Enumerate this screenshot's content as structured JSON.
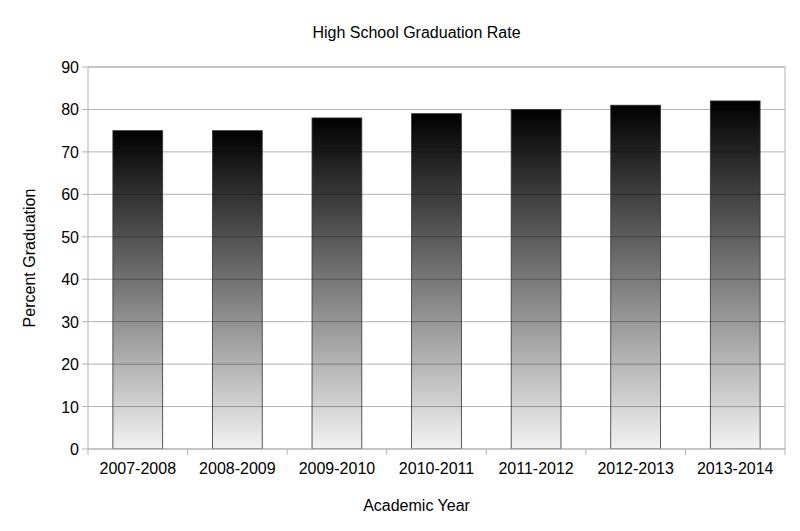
{
  "chart_data": {
    "type": "bar",
    "title": "High School Graduation Rate",
    "x_label": "Academic Year",
    "y_label": "Percent Graduation",
    "categories": [
      "2007-2008",
      "2008-2009",
      "2009-2010",
      "2010-2011",
      "2011-2012",
      "2012-2013",
      "2013-2014"
    ],
    "values": [
      75,
      75,
      78,
      79,
      80,
      81,
      82
    ],
    "color": "#000000",
    "ylim": [
      0,
      90
    ],
    "yticks": [
      0,
      10,
      20,
      30,
      40,
      50,
      60,
      70,
      80,
      90
    ],
    "grid": true
  }
}
